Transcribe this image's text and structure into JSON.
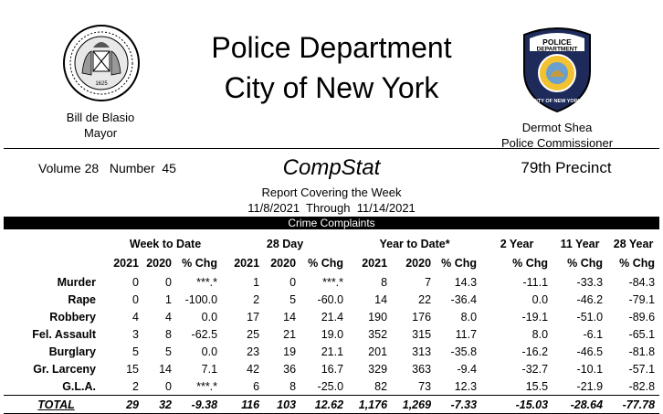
{
  "header": {
    "title_line1": "Police Department",
    "title_line2": "City of New York",
    "mayor_name": "Bill de Blasio",
    "mayor_title": "Mayor",
    "commissioner_name": "Dermot Shea",
    "commissioner_title": "Police Commissioner",
    "seal_text": "1625",
    "badge_text_line1": "POLICE",
    "badge_text_line2": "DEPARTMENT",
    "badge_text_line3": "CITY OF NEW YORK"
  },
  "report": {
    "volume": "Volume 28   Number  45",
    "name": "CompStat",
    "precinct": "79th Precinct",
    "covering": "Report Covering the Week",
    "dates": "11/8/2021  Through  11/14/2021",
    "section": "Crime Complaints"
  },
  "groups": {
    "week": "Week to Date",
    "day28": "28 Day",
    "ytd": "Year to Date*",
    "y2": "2 Year",
    "y11": "11 Year",
    "y28": "28 Year"
  },
  "columns": [
    "2021",
    "2020",
    "% Chg",
    "2021",
    "2020",
    "% Chg",
    "2021",
    "2020",
    "% Chg",
    "% Chg",
    "% Chg",
    "% Chg"
  ],
  "rows": [
    {
      "label": "Murder",
      "cells": [
        "0",
        "0",
        "***.*",
        "1",
        "0",
        "***.*",
        "8",
        "7",
        "14.3",
        "-11.1",
        "-33.3",
        "-84.3"
      ]
    },
    {
      "label": "Rape",
      "cells": [
        "0",
        "1",
        "-100.0",
        "2",
        "5",
        "-60.0",
        "14",
        "22",
        "-36.4",
        "0.0",
        "-46.2",
        "-79.1"
      ]
    },
    {
      "label": "Robbery",
      "cells": [
        "4",
        "4",
        "0.0",
        "17",
        "14",
        "21.4",
        "190",
        "176",
        "8.0",
        "-19.1",
        "-51.0",
        "-89.6"
      ]
    },
    {
      "label": "Fel. Assault",
      "cells": [
        "3",
        "8",
        "-62.5",
        "25",
        "21",
        "19.0",
        "352",
        "315",
        "11.7",
        "8.0",
        "-6.1",
        "-65.1"
      ]
    },
    {
      "label": "Burglary",
      "cells": [
        "5",
        "5",
        "0.0",
        "23",
        "19",
        "21.1",
        "201",
        "313",
        "-35.8",
        "-16.2",
        "-46.5",
        "-81.8"
      ]
    },
    {
      "label": "Gr. Larceny",
      "cells": [
        "15",
        "14",
        "7.1",
        "42",
        "36",
        "16.7",
        "329",
        "363",
        "-9.4",
        "-32.7",
        "-10.1",
        "-57.1"
      ]
    },
    {
      "label": "G.L.A.",
      "cells": [
        "2",
        "0",
        "***.*",
        "6",
        "8",
        "-25.0",
        "82",
        "73",
        "12.3",
        "15.5",
        "-21.9",
        "-82.8"
      ]
    }
  ],
  "total": {
    "label": "TOTAL",
    "cells": [
      "29",
      "32",
      "-9.38",
      "116",
      "103",
      "12.62",
      "1,176",
      "1,269",
      "-7.33",
      "-15.03",
      "-28.64",
      "-77.78"
    ]
  }
}
